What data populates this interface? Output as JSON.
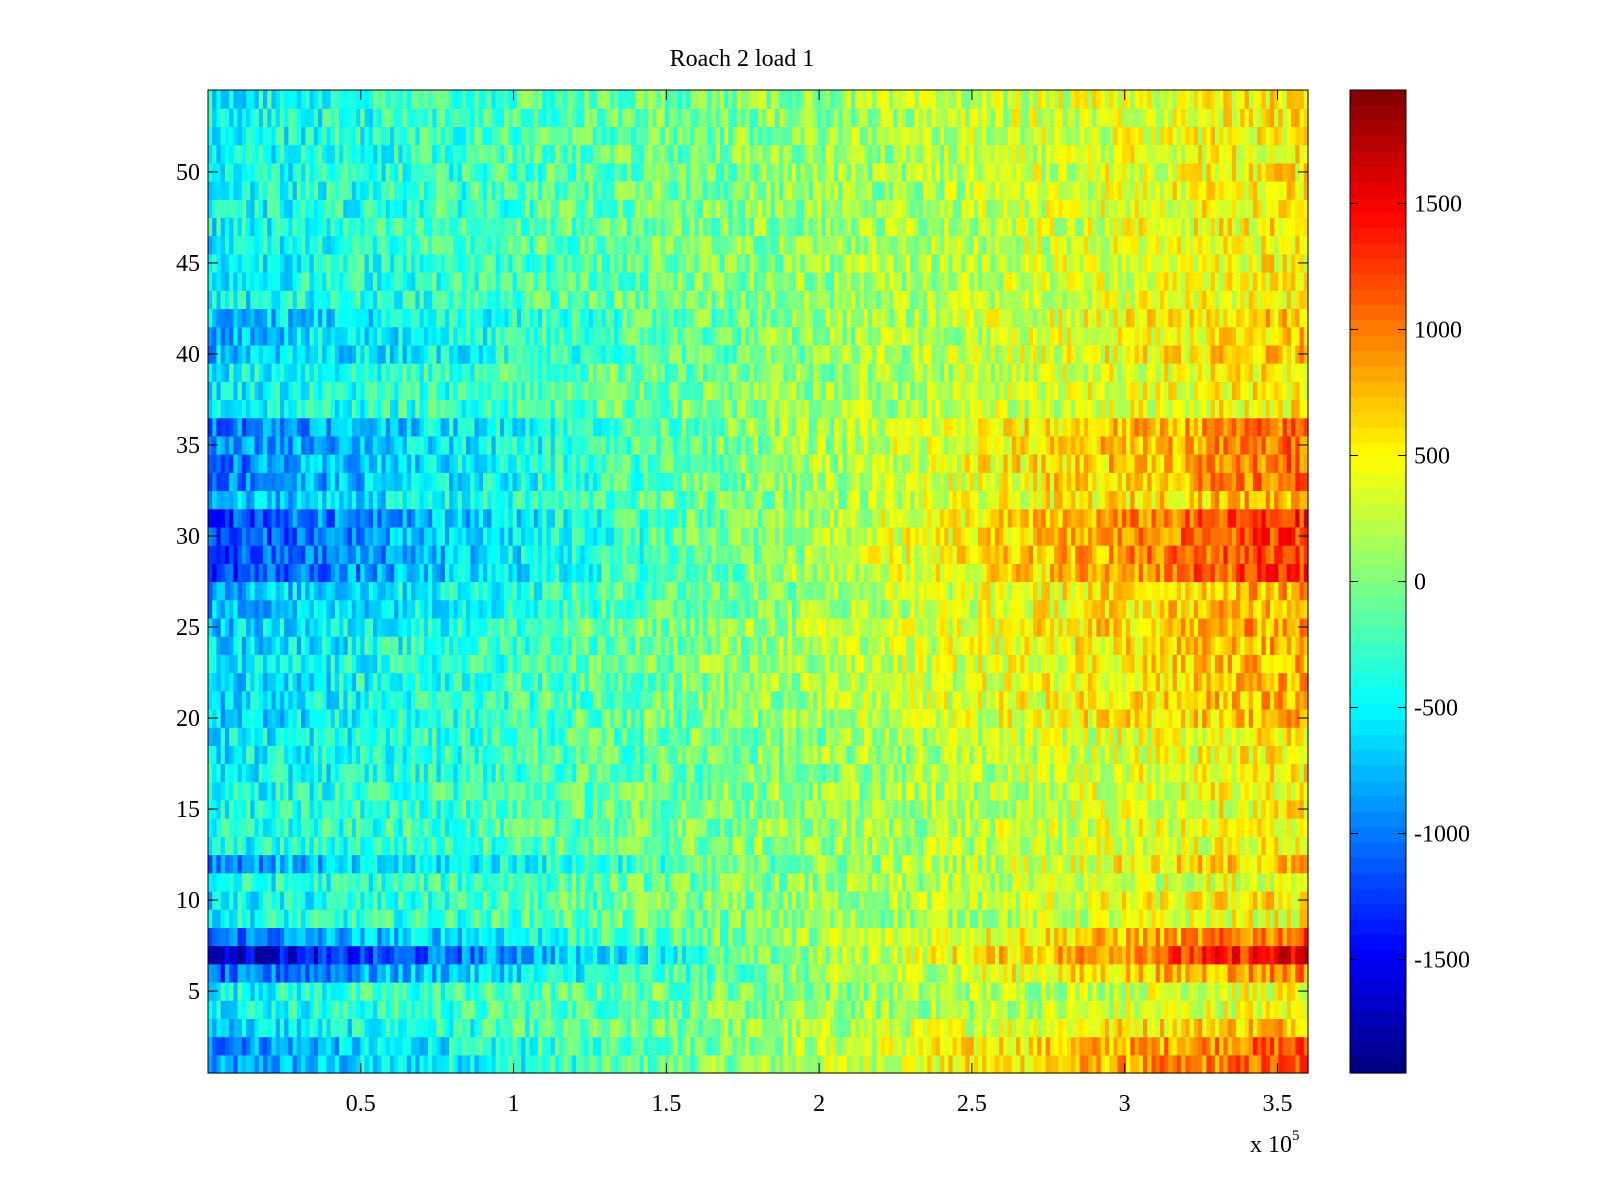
{
  "chart_data": {
    "type": "heatmap",
    "title": "Roach 2 load 1",
    "xlabel": "",
    "ylabel": "",
    "x_multiplier_label": "x 10",
    "x_multiplier_exponent": "5",
    "xlim": [
      0,
      3.6
    ],
    "ylim": [
      0.5,
      54.5
    ],
    "x_ticks": [
      0.5,
      1,
      1.5,
      2,
      2.5,
      3,
      3.5
    ],
    "x_tick_labels": [
      "0.5",
      "1",
      "1.5",
      "2",
      "2.5",
      "3",
      "3.5"
    ],
    "y_ticks": [
      5,
      10,
      15,
      20,
      25,
      30,
      35,
      40,
      45,
      50
    ],
    "y_tick_labels": [
      "5",
      "10",
      "15",
      "20",
      "25",
      "30",
      "35",
      "40",
      "45",
      "50"
    ],
    "rows": 54,
    "colormap": "jet",
    "colorbar": {
      "clim": [
        -1950,
        1950
      ],
      "ticks": [
        -1500,
        -1000,
        -500,
        0,
        500,
        1000,
        1500
      ],
      "tick_labels": [
        "-1500",
        "-1000",
        "-500",
        "0",
        "500",
        "1000",
        "1500"
      ]
    },
    "row_gradients": [
      {
        "rows": [
          1,
          2
        ],
        "start": -950,
        "end": 1150
      },
      {
        "rows": [
          3,
          3
        ],
        "start": -650,
        "end": 800
      },
      {
        "rows": [
          4,
          5
        ],
        "start": -450,
        "end": 450
      },
      {
        "rows": [
          6,
          6
        ],
        "start": -1150,
        "end": 1000
      },
      {
        "rows": [
          7,
          7
        ],
        "start": -1750,
        "end": 1550
      },
      {
        "rows": [
          8,
          8
        ],
        "start": -1050,
        "end": 1100
      },
      {
        "rows": [
          9,
          9
        ],
        "start": -450,
        "end": 450
      },
      {
        "rows": [
          10,
          10
        ],
        "start": -550,
        "end": 600
      },
      {
        "rows": [
          11,
          11
        ],
        "start": -450,
        "end": 450
      },
      {
        "rows": [
          12,
          12
        ],
        "start": -900,
        "end": 750
      },
      {
        "rows": [
          13,
          16
        ],
        "start": -450,
        "end": 500
      },
      {
        "rows": [
          17,
          19
        ],
        "start": -550,
        "end": 550
      },
      {
        "rows": [
          20,
          24
        ],
        "start": -650,
        "end": 800
      },
      {
        "rows": [
          25,
          25
        ],
        "start": -700,
        "end": 900
      },
      {
        "rows": [
          26,
          27
        ],
        "start": -800,
        "end": 850
      },
      {
        "rows": [
          28,
          31
        ],
        "start": -1250,
        "end": 1300
      },
      {
        "rows": [
          32,
          32
        ],
        "start": -800,
        "end": 850
      },
      {
        "rows": [
          33,
          36
        ],
        "start": -1000,
        "end": 1050
      },
      {
        "rows": [
          37,
          39
        ],
        "start": -500,
        "end": 550
      },
      {
        "rows": [
          40,
          42
        ],
        "start": -750,
        "end": 700
      },
      {
        "rows": [
          43,
          54
        ],
        "start": -500,
        "end": 550
      }
    ]
  }
}
